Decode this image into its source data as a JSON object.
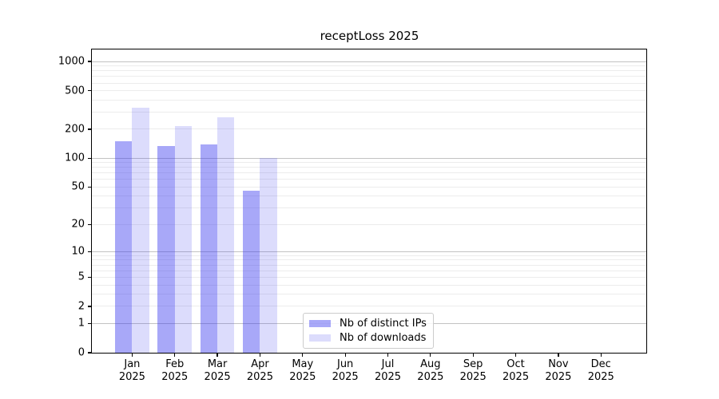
{
  "title": "receptLoss 2025",
  "chart_data": {
    "type": "bar",
    "title": "receptLoss 2025",
    "year": "2025",
    "months": [
      "Jan",
      "Feb",
      "Mar",
      "Apr",
      "May",
      "Jun",
      "Jul",
      "Aug",
      "Sep",
      "Oct",
      "Nov",
      "Dec"
    ],
    "categories": [
      "Jan 2025",
      "Feb 2025",
      "Mar 2025",
      "Apr 2025",
      "May 2025",
      "Jun 2025",
      "Jul 2025",
      "Aug 2025",
      "Sep 2025",
      "Oct 2025",
      "Nov 2025",
      "Dec 2025"
    ],
    "series": [
      {
        "name": "Nb of distinct IPs",
        "color": "#a9a9f8",
        "css_color": "rgba(62,62,240,0.45)",
        "values": [
          150,
          133,
          140,
          46,
          0,
          0,
          0,
          0,
          0,
          0,
          0,
          0
        ]
      },
      {
        "name": "Nb of downloads",
        "color": "#dcdcfb",
        "css_color": "rgba(62,62,240,0.18)",
        "values": [
          335,
          215,
          265,
          100,
          0,
          0,
          0,
          0,
          0,
          0,
          0,
          0
        ]
      }
    ],
    "yscale": "log1p",
    "ylim": [
      0,
      1400
    ],
    "y_ticks": [
      0,
      1,
      2,
      5,
      10,
      20,
      50,
      100,
      200,
      500,
      1000
    ],
    "grid": "horizontal, major and minor",
    "legend_position": "lower center",
    "colors": {
      "grid_major": "#c2c2c2",
      "grid_minor": "#ececec",
      "axis": "#000000",
      "background": "#ffffff"
    }
  }
}
